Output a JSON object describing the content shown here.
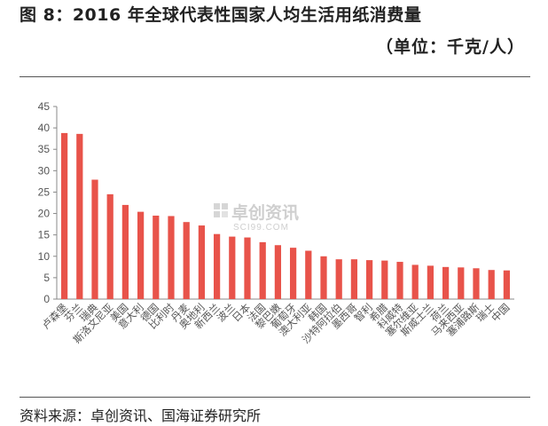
{
  "figure": {
    "title": "图 8：2016 年全球代表性国家人均生活用纸消费量",
    "unit": "（单位：千克/人）",
    "source": "资料来源：卓创资讯、国海证券研究所"
  },
  "watermark": {
    "name": "卓创资讯",
    "site": "SCI99.COM"
  },
  "colors": {
    "bar": "#e8534a",
    "axis": "#888888"
  },
  "chart_data": {
    "type": "bar",
    "categories": [
      "卢森堡",
      "芬兰",
      "瑞典",
      "斯洛文尼亚",
      "美国",
      "意大利",
      "德国",
      "比利时",
      "丹麦",
      "奥地利",
      "新西兰",
      "波兰",
      "日本",
      "法国",
      "黎巴嫩",
      "葡萄牙",
      "澳大利亚",
      "韩国",
      "沙特阿拉伯",
      "墨西哥",
      "智利",
      "希腊",
      "科威特",
      "塞尔维亚",
      "斯威士兰",
      "荷兰",
      "马来西亚",
      "塞浦路斯",
      "瑞士",
      "中国"
    ],
    "values": [
      38.8,
      38.6,
      27.9,
      24.5,
      22.0,
      20.4,
      19.5,
      19.4,
      18.0,
      17.2,
      15.2,
      14.6,
      14.4,
      13.3,
      12.6,
      12.0,
      11.3,
      10.0,
      9.3,
      9.3,
      9.1,
      9.0,
      8.7,
      8.0,
      7.8,
      7.5,
      7.4,
      7.2,
      6.8,
      6.7
    ],
    "yticks": [
      0,
      5,
      10,
      15,
      20,
      25,
      30,
      35,
      40,
      45
    ],
    "ylim": [
      0,
      45
    ],
    "grid": false,
    "legend": "none"
  }
}
